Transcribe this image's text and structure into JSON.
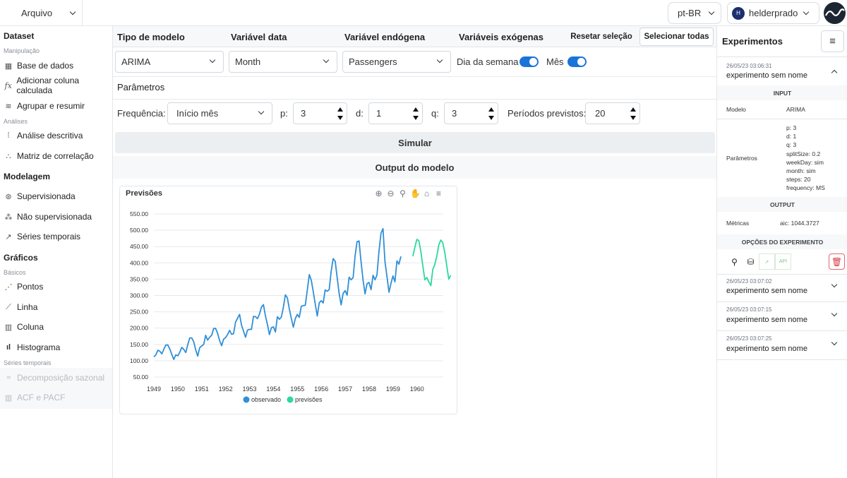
{
  "topbar": {
    "file_menu": "Arquivo",
    "language": "pt-BR",
    "user_initial": "H",
    "user_name": "helderprado"
  },
  "sidebar": {
    "dataset_heading": "Dataset",
    "manipulation_sub": "Manipulação",
    "base_de_dados": "Base de dados",
    "adicionar_coluna": "Adicionar coluna calculada",
    "agrupar": "Agrupar e resumir",
    "analises_sub": "Análises",
    "analise_descritiva": "Análise descritiva",
    "matriz_correlacao": "Matriz de correlação",
    "modelagem_heading": "Modelagem",
    "supervisionada": "Supervisionada",
    "nao_supervisionada": "Não supervisionada",
    "series_temporais": "Séries temporais",
    "graficos_heading": "Gráficos",
    "basicos_sub": "Básicos",
    "pontos": "Pontos",
    "linha": "Linha",
    "coluna": "Coluna",
    "histograma": "Histograma",
    "series_sub": "Séries temporais",
    "decomposicao": "Decomposição sazonal",
    "acf_pacf": "ACF e PACF"
  },
  "main": {
    "col_tipo_modelo": "Tipo de modelo",
    "col_variavel_data": "Variável data",
    "col_variavel_endogena": "Variável endógena",
    "col_variaveis_exogenas": "Variáveis exógenas",
    "resetar_selecao": "Resetar seleção",
    "selecionar_todas": "Selecionar todas",
    "tipo_modelo_value": "ARIMA",
    "variavel_data_value": "Month",
    "variavel_endogena_value": "Passengers",
    "exog_dia_semana": "Dia da semana",
    "exog_mes": "Mês",
    "parametros_title": "Parâmetros",
    "frequencia_label": "Frequência:",
    "frequencia_value": "Início mês",
    "p_label": "p:",
    "p_value": "3",
    "d_label": "d:",
    "d_value": "1",
    "q_label": "q:",
    "q_value": "3",
    "periodos_label": "Períodos previstos:",
    "periodos_value": "20",
    "simular": "Simular",
    "output_title": "Output do modelo"
  },
  "chart_data": {
    "type": "line",
    "title": "Previsões",
    "xlabel": "",
    "ylabel": "",
    "ylim": [
      50,
      550
    ],
    "yticks": [
      "550.00",
      "500.00",
      "450.00",
      "400.00",
      "350.00",
      "300.00",
      "250.00",
      "200.00",
      "150.00",
      "100.00",
      "50.00"
    ],
    "xticks": [
      "1949",
      "1950",
      "1951",
      "1952",
      "1953",
      "1954",
      "1955",
      "1956",
      "1957",
      "1958",
      "1959",
      "1960"
    ],
    "legend": [
      "observado",
      "previsões"
    ],
    "legend_position": "bottom",
    "series": [
      {
        "name": "observado",
        "color": "#2f8fd8",
        "x_start": 1949.0,
        "step": 0.0833,
        "values": [
          112,
          118,
          132,
          129,
          121,
          135,
          148,
          148,
          136,
          119,
          104,
          118,
          115,
          126,
          141,
          135,
          125,
          149,
          170,
          170,
          158,
          133,
          114,
          140,
          145,
          150,
          178,
          163,
          172,
          178,
          199,
          199,
          184,
          162,
          146,
          166,
          171,
          180,
          193,
          181,
          183,
          218,
          230,
          242,
          209,
          191,
          172,
          194,
          196,
          196,
          236,
          235,
          229,
          243,
          264,
          272,
          237,
          211,
          180,
          201,
          204,
          188,
          235,
          227,
          234,
          264,
          302,
          293,
          259,
          229,
          203,
          229,
          242,
          233,
          267,
          269,
          270,
          315,
          364,
          347,
          312,
          274,
          237,
          278,
          284,
          277,
          317,
          313,
          318,
          374,
          413,
          405,
          355,
          306,
          271,
          306,
          315,
          301,
          356,
          348,
          355,
          422,
          465,
          467,
          404,
          347,
          305,
          336,
          340,
          318,
          362,
          348,
          363,
          435,
          491,
          505,
          404,
          359,
          310,
          337,
          360,
          342,
          406,
          396,
          420
        ]
      },
      {
        "name": "previsões",
        "color": "#2bd99a",
        "x_start": 1959.83,
        "step": 0.0833,
        "values": [
          420,
          448,
          472,
          468,
          434,
          390,
          348,
          355,
          342,
          330,
          380,
          395,
          420,
          455,
          470,
          462,
          432,
          390,
          350,
          362
        ]
      }
    ]
  },
  "rpanel": {
    "title": "Experimentos",
    "exp1_date": "26/05/23 03:06:31",
    "exp1_name": "experimento sem nome",
    "input_header": "INPUT",
    "modelo_label": "Modelo",
    "modelo_value": "ARIMA",
    "parametros_label": "Parâmetros",
    "param_lines": [
      "p: 3",
      "d: 1",
      "q: 3",
      "splitSize: 0.2",
      "weekDay: sim",
      "month: sim",
      "steps: 20",
      "frequency: MS"
    ],
    "output_header": "OUTPUT",
    "metricas_label": "Métricas",
    "metricas_value": "aic: 1044.3727",
    "opcoes_header": "OPÇÕES DO EXPERIMENTO",
    "api_label": "API",
    "exp2_date": "26/05/23 03:07:02",
    "exp2_name": "experimento sem nome",
    "exp3_date": "26/05/23 03:07:15",
    "exp3_name": "experimento sem nome",
    "exp4_date": "26/05/23 03:07:25",
    "exp4_name": "experimento sem nome"
  }
}
